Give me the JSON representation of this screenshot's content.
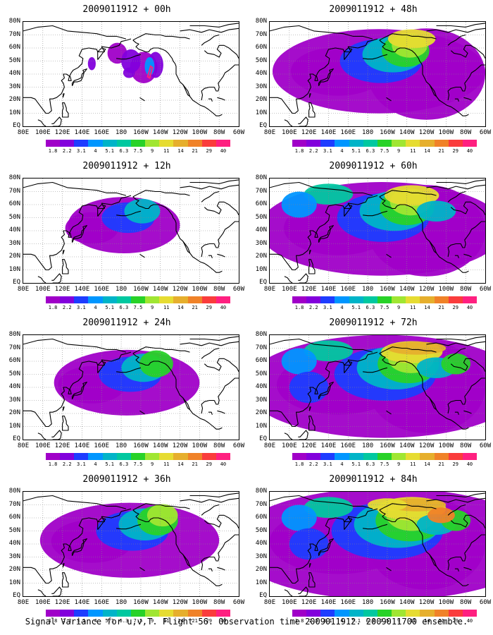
{
  "caption": "Signal Variance for u,v,T. Flight 56. Observation time 2009011912. 2009011700 ensemble.",
  "lat_labels": [
    "80N",
    "70N",
    "60N",
    "50N",
    "40N",
    "30N",
    "20N",
    "10N",
    "EQ"
  ],
  "lon_labels": [
    "80E",
    "100E",
    "120E",
    "140E",
    "160E",
    "180",
    "160W",
    "140W",
    "120W",
    "100W",
    "80W",
    "60W"
  ],
  "colorbar": {
    "colors": [
      "#a000c8",
      "#8200dc",
      "#1e3cff",
      "#0096ff",
      "#00b4c8",
      "#00c8a0",
      "#28d228",
      "#a0e632",
      "#e6dc32",
      "#e6af2d",
      "#f08228",
      "#fa3c3c",
      "#ff2080"
    ],
    "labels": [
      "1.8",
      "2.2",
      "3.1",
      "4",
      "5.1",
      "6.3",
      "7.5",
      "9",
      "11",
      "14",
      "21",
      "29",
      "40"
    ]
  },
  "panels": [
    {
      "title": "2009011912 + 00h",
      "level": 0
    },
    {
      "title": "2009011912 + 48h",
      "level": 4
    },
    {
      "title": "2009011912 + 12h",
      "level": 1
    },
    {
      "title": "2009011912 + 60h",
      "level": 5
    },
    {
      "title": "2009011912 + 24h",
      "level": 2
    },
    {
      "title": "2009011912 + 72h",
      "level": 6
    },
    {
      "title": "2009011912 + 36h",
      "level": 3
    },
    {
      "title": "2009011912 + 84h",
      "level": 7
    }
  ]
}
